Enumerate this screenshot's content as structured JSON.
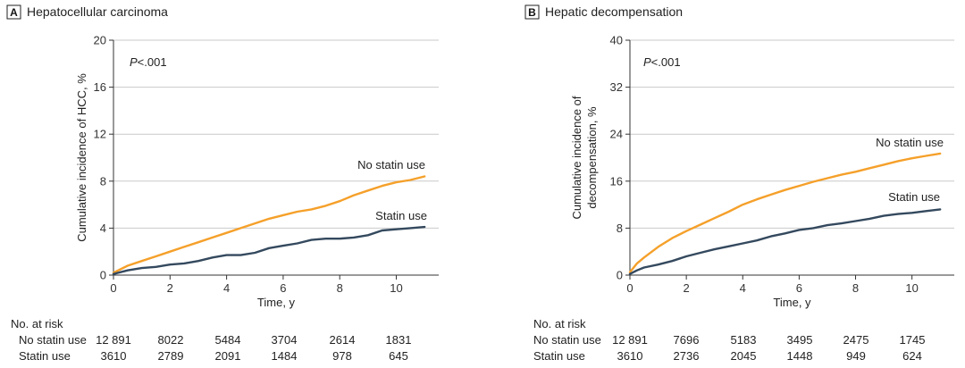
{
  "chart_data": [
    {
      "type": "line",
      "panel": "A",
      "title": "Hepatocellular carcinoma",
      "xlabel": "Time, y",
      "ylabel": "Cumulative incidence of HCC, %",
      "xlim": [
        0,
        11.5
      ],
      "ylim": [
        0,
        20
      ],
      "xticks": [
        0,
        2,
        4,
        6,
        8,
        10
      ],
      "yticks": [
        0,
        4,
        8,
        12,
        16,
        20
      ],
      "pvalue": "P<.001",
      "series": [
        {
          "name": "No statin use",
          "color": "#F5A02A",
          "label": "No statin use",
          "x": [
            0,
            0.5,
            1,
            1.5,
            2,
            2.5,
            3,
            3.5,
            4,
            4.5,
            5,
            5.5,
            6,
            6.5,
            7,
            7.5,
            8,
            8.5,
            9,
            9.5,
            10,
            10.5,
            11
          ],
          "y": [
            0.2,
            0.8,
            1.2,
            1.6,
            2.0,
            2.4,
            2.8,
            3.2,
            3.6,
            4.0,
            4.4,
            4.8,
            5.1,
            5.4,
            5.6,
            5.9,
            6.3,
            6.8,
            7.2,
            7.6,
            7.9,
            8.1,
            8.4
          ]
        },
        {
          "name": "Statin use",
          "color": "#34495E",
          "label": "Statin use",
          "x": [
            0,
            0.5,
            1,
            1.5,
            2,
            2.5,
            3,
            3.5,
            4,
            4.5,
            5,
            5.5,
            6,
            6.5,
            7,
            7.5,
            8,
            8.5,
            9,
            9.5,
            10,
            10.5,
            11
          ],
          "y": [
            0.1,
            0.4,
            0.6,
            0.7,
            0.9,
            1.0,
            1.2,
            1.5,
            1.7,
            1.7,
            1.9,
            2.3,
            2.5,
            2.7,
            3.0,
            3.1,
            3.1,
            3.2,
            3.4,
            3.8,
            3.9,
            4.0,
            4.1
          ]
        }
      ],
      "at_risk": {
        "label": "No. at risk",
        "rows": [
          {
            "name": "No statin use",
            "values": [
              "12 891",
              "8022",
              "5484",
              "3704",
              "2614",
              "1831"
            ]
          },
          {
            "name": "Statin use",
            "values": [
              "3610",
              "2789",
              "2091",
              "1484",
              "978",
              "645"
            ]
          }
        ]
      }
    },
    {
      "type": "line",
      "panel": "B",
      "title": "Hepatic decompensation",
      "xlabel": "Time, y",
      "ylabel_lines": [
        "Cumulative incidence of",
        "decompensation, %"
      ],
      "xlim": [
        0,
        11.5
      ],
      "ylim": [
        0,
        40
      ],
      "xticks": [
        0,
        2,
        4,
        6,
        8,
        10
      ],
      "yticks": [
        0,
        8,
        16,
        24,
        32,
        40
      ],
      "pvalue": "P<.001",
      "series": [
        {
          "name": "No statin use",
          "color": "#F5A02A",
          "label": "No statin use",
          "x": [
            0,
            0.25,
            0.5,
            1,
            1.5,
            2,
            2.5,
            3,
            3.5,
            4,
            4.5,
            5,
            5.5,
            6,
            6.5,
            7,
            7.5,
            8,
            8.5,
            9,
            9.5,
            10,
            10.5,
            11
          ],
          "y": [
            0.5,
            2.0,
            3.0,
            4.8,
            6.3,
            7.5,
            8.6,
            9.7,
            10.8,
            12.0,
            12.9,
            13.7,
            14.5,
            15.2,
            15.9,
            16.5,
            17.1,
            17.6,
            18.2,
            18.8,
            19.4,
            19.9,
            20.3,
            20.7
          ]
        },
        {
          "name": "Statin use",
          "color": "#34495E",
          "label": "Statin use",
          "x": [
            0,
            0.25,
            0.5,
            1,
            1.5,
            2,
            2.5,
            3,
            3.5,
            4,
            4.5,
            5,
            5.5,
            6,
            6.5,
            7,
            7.5,
            8,
            8.5,
            9,
            9.5,
            10,
            10.5,
            11
          ],
          "y": [
            0.2,
            0.8,
            1.3,
            1.8,
            2.4,
            3.2,
            3.8,
            4.4,
            4.9,
            5.4,
            5.9,
            6.6,
            7.1,
            7.7,
            8.0,
            8.5,
            8.8,
            9.2,
            9.6,
            10.1,
            10.4,
            10.6,
            10.9,
            11.2
          ]
        }
      ],
      "at_risk": {
        "label": "No. at risk",
        "rows": [
          {
            "name": "No statin use",
            "values": [
              "12 891",
              "7696",
              "5183",
              "3495",
              "2475",
              "1745"
            ]
          },
          {
            "name": "Statin use",
            "values": [
              "3610",
              "2736",
              "2045",
              "1448",
              "949",
              "624"
            ]
          }
        ]
      }
    }
  ]
}
